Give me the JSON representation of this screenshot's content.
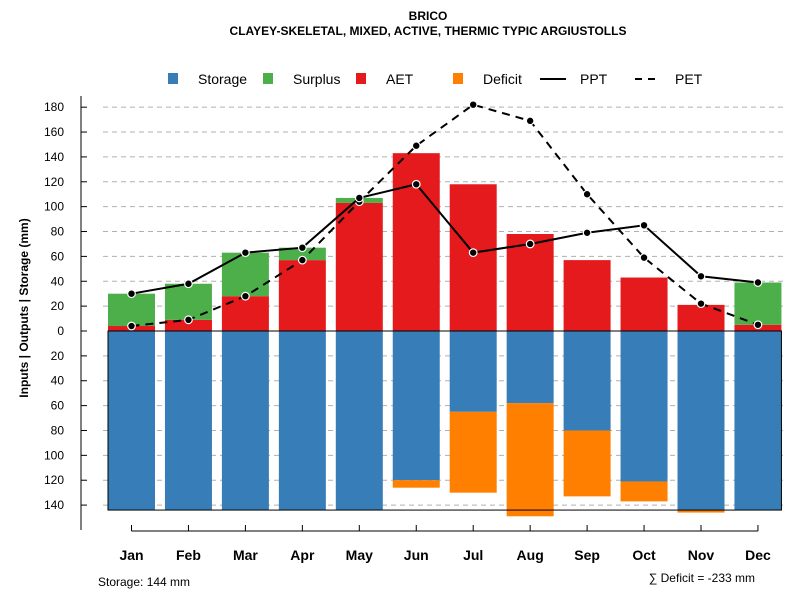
{
  "chart_data": {
    "type": "bar",
    "title": "BRICO",
    "subtitle": "CLAYEY-SKELETAL, MIXED, ACTIVE, THERMIC TYPIC ARGIUSTOLLS",
    "ylabel": "Inputs | Outputs | Storage    (mm)",
    "categories": [
      "Jan",
      "Feb",
      "Mar",
      "Apr",
      "May",
      "Jun",
      "Jul",
      "Aug",
      "Sep",
      "Oct",
      "Nov",
      "Dec"
    ],
    "yticks_top": [
      "180",
      "160",
      "140",
      "120",
      "100",
      "80",
      "60",
      "40",
      "20",
      "0"
    ],
    "yticks_bottom": [
      "20",
      "40",
      "60",
      "80",
      "100",
      "120",
      "140"
    ],
    "ylim": [
      -150,
      190
    ],
    "storage_capacity": 144,
    "series": [
      {
        "name": "Storage",
        "color": "#377EB8",
        "values": [
          144,
          144,
          144,
          144,
          144,
          120,
          65,
          58,
          80,
          121,
          144,
          144
        ]
      },
      {
        "name": "Surplus",
        "color": "#4DAF4A",
        "values": [
          26,
          29,
          35,
          10,
          4,
          0,
          0,
          0,
          0,
          0,
          0,
          34
        ]
      },
      {
        "name": "AET",
        "color": "#E41A1C",
        "values": [
          4,
          9,
          28,
          57,
          103,
          143,
          118,
          78,
          57,
          43,
          21,
          5
        ]
      },
      {
        "name": "Deficit",
        "color": "#FF7F00",
        "values": [
          0,
          0,
          0,
          0,
          0,
          6,
          65,
          91,
          53,
          16,
          2,
          0
        ]
      },
      {
        "name": "PPT",
        "color": "#000000",
        "values": [
          30,
          38,
          63,
          67,
          107,
          118,
          63,
          70,
          79,
          85,
          44,
          39
        ]
      },
      {
        "name": "PET",
        "color": "#000000",
        "values": [
          4,
          9,
          28,
          57,
          104,
          149,
          182,
          169,
          110,
          59,
          22,
          5
        ]
      }
    ],
    "legend": {
      "position": "top",
      "items": [
        {
          "label": "Storage",
          "color": "#377EB8",
          "kind": "box"
        },
        {
          "label": "Surplus",
          "color": "#4DAF4A",
          "kind": "box"
        },
        {
          "label": "AET",
          "color": "#E41A1C",
          "kind": "box"
        },
        {
          "label": "Deficit",
          "color": "#FF7F00",
          "kind": "box"
        },
        {
          "label": "PPT",
          "color": "#000000",
          "kind": "solid"
        },
        {
          "label": "PET",
          "color": "#000000",
          "kind": "dashed"
        }
      ]
    },
    "footer_left": "Storage: 144 mm",
    "footer_right": "∑ Deficit = -233 mm"
  }
}
